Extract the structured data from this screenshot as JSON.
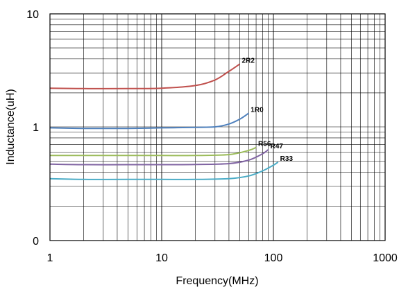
{
  "chart_data": {
    "type": "line",
    "xlabel": "Frequency(MHz)",
    "ylabel": "Inductance(uH)",
    "x_scale": "log",
    "xlim": [
      1,
      1000
    ],
    "x_ticks": [
      "1",
      "10",
      "100",
      "1000"
    ],
    "y_ticks": [
      "0",
      "1",
      "10"
    ],
    "grid": true,
    "series": [
      {
        "name": "2R2",
        "color": "#c0504d",
        "x": [
          1,
          2,
          5,
          10,
          20,
          30,
          40,
          50
        ],
        "y": [
          2.2,
          2.18,
          2.18,
          2.2,
          2.32,
          2.6,
          3.1,
          3.6
        ]
      },
      {
        "name": "1R0",
        "color": "#4f81bd",
        "x": [
          1,
          2,
          5,
          10,
          20,
          30,
          40,
          50,
          60
        ],
        "y": [
          0.98,
          0.97,
          0.97,
          0.98,
          0.99,
          1.0,
          1.06,
          1.17,
          1.32
        ]
      },
      {
        "name": "R56",
        "color": "#9bbb59",
        "x": [
          1,
          2,
          5,
          10,
          20,
          40,
          60,
          70
        ],
        "y": [
          0.56,
          0.56,
          0.56,
          0.56,
          0.56,
          0.57,
          0.62,
          0.66
        ]
      },
      {
        "name": "R47",
        "color": "#8064a2",
        "x": [
          1,
          2,
          5,
          10,
          20,
          40,
          60,
          80,
          90
        ],
        "y": [
          0.47,
          0.465,
          0.465,
          0.465,
          0.467,
          0.475,
          0.51,
          0.58,
          0.63
        ]
      },
      {
        "name": "R33",
        "color": "#4bacc6",
        "x": [
          1,
          2,
          5,
          10,
          20,
          40,
          60,
          80,
          100,
          110
        ],
        "y": [
          0.35,
          0.345,
          0.345,
          0.345,
          0.345,
          0.35,
          0.37,
          0.41,
          0.46,
          0.49
        ]
      }
    ]
  }
}
